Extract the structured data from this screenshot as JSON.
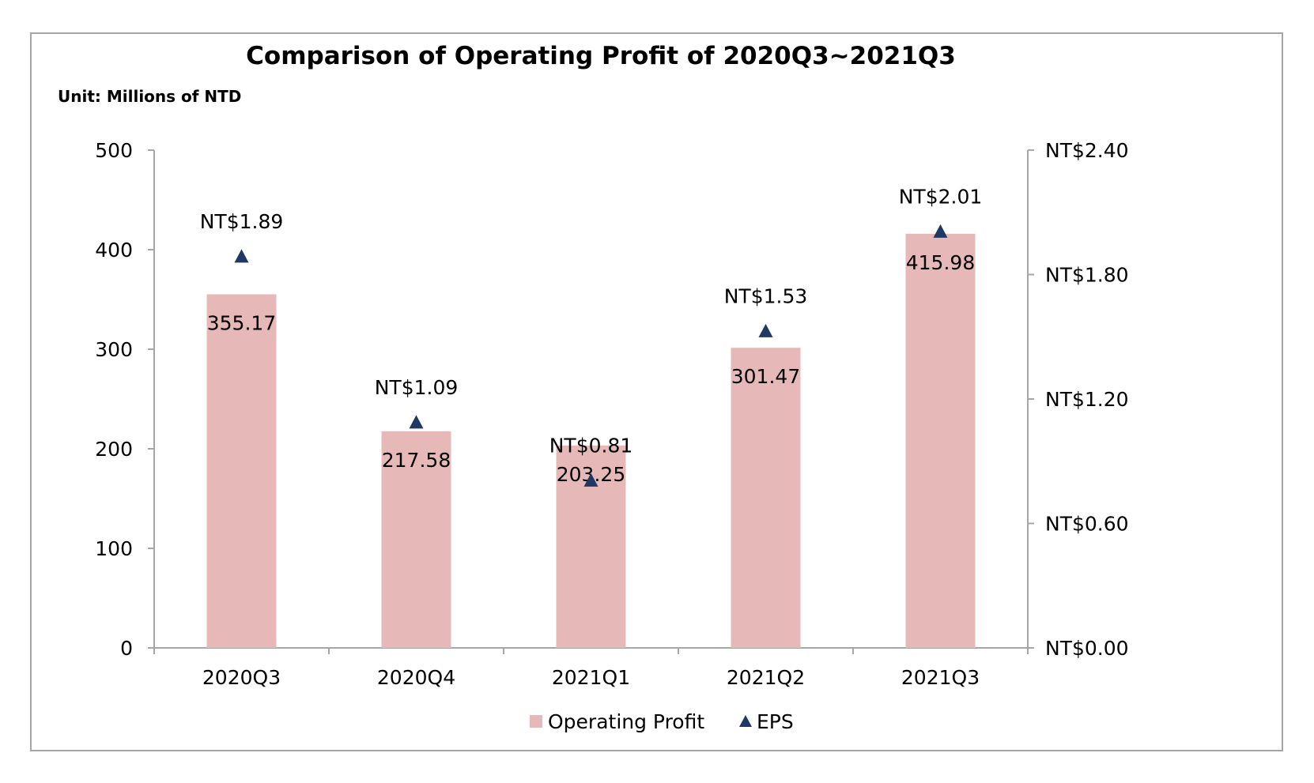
{
  "chart_data": {
    "type": "bar",
    "title": "Comparison of Operating Profit of 2020Q3~2021Q3",
    "subtitle": "Unit: Millions of NTD",
    "categories": [
      "2020Q3",
      "2020Q4",
      "2021Q1",
      "2021Q2",
      "2021Q3"
    ],
    "series": [
      {
        "name": "Operating Profit",
        "type": "bar",
        "axis": "left",
        "color": "#e6b9b8",
        "values": [
          355.17,
          217.58,
          203.25,
          301.47,
          415.98
        ],
        "labels": [
          "355.17",
          "217.58",
          "203.25",
          "301.47",
          "415.98"
        ]
      },
      {
        "name": "EPS",
        "type": "scatter",
        "marker": "triangle",
        "axis": "right",
        "color": "#1f3864",
        "values": [
          1.89,
          1.09,
          0.81,
          1.53,
          2.01
        ],
        "labels": [
          "NT$1.89",
          "NT$1.09",
          "NT$0.81",
          "NT$1.53",
          "NT$2.01"
        ]
      }
    ],
    "ylim": [
      0,
      500
    ],
    "yticks": [
      "0",
      "100",
      "200",
      "300",
      "400",
      "500"
    ],
    "y2lim": [
      0,
      2.4
    ],
    "y2ticks": [
      "NT$0.00",
      "NT$0.60",
      "NT$1.20",
      "NT$1.80",
      "NT$2.40"
    ],
    "grid": false,
    "legend_position": "bottom"
  }
}
